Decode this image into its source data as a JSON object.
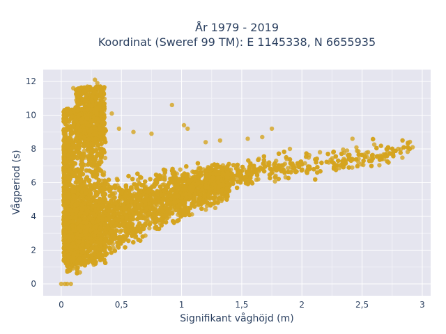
{
  "chart_data": {
    "type": "scatter",
    "title_lines": [
      "År 1979 - 2019",
      "Koordinat (Sweref 99 TM): E 1145338, N 6655935"
    ],
    "xlabel": "Signifikant våghöjd (m)",
    "ylabel": "Vågperiod (s)",
    "xlim": [
      -0.15,
      3.07
    ],
    "ylim": [
      -0.7,
      12.7
    ],
    "x_ticks": [
      0,
      0.5,
      1,
      1.5,
      2,
      2.5,
      3
    ],
    "x_tick_labels": [
      "0",
      "0,5",
      "1",
      "1,5",
      "2",
      "2,5",
      "3"
    ],
    "y_ticks": [
      0,
      2,
      4,
      6,
      8,
      10,
      12
    ],
    "y_tick_labels": [
      "0",
      "2",
      "4",
      "6",
      "8",
      "10",
      "12"
    ],
    "grid": true,
    "marker_color": "#D4A41F",
    "plot_background": "#E5E5EF",
    "point_count": 9000,
    "points": [
      [
        0.0,
        0.0
      ],
      [
        0.03,
        0.0
      ],
      [
        0.05,
        0.0
      ],
      [
        0.08,
        0.0
      ],
      [
        0.1,
        11.6
      ],
      [
        0.15,
        11.3
      ],
      [
        0.22,
        11.5
      ],
      [
        0.28,
        12.1
      ],
      [
        0.3,
        11.9
      ],
      [
        0.3,
        11.0
      ],
      [
        0.42,
        10.1
      ],
      [
        0.35,
        9.4
      ],
      [
        0.48,
        9.2
      ],
      [
        0.6,
        9.0
      ],
      [
        0.75,
        8.9
      ],
      [
        0.92,
        10.6
      ],
      [
        1.02,
        9.4
      ],
      [
        1.05,
        9.2
      ],
      [
        1.2,
        8.4
      ],
      [
        1.32,
        8.5
      ],
      [
        1.55,
        8.6
      ],
      [
        1.67,
        8.7
      ],
      [
        1.75,
        9.2
      ],
      [
        1.9,
        8.0
      ],
      [
        2.15,
        7.8
      ],
      [
        2.42,
        8.6
      ],
      [
        2.55,
        7.8
      ],
      [
        2.65,
        7.6
      ],
      [
        2.8,
        8.0
      ],
      [
        2.88,
        8.3
      ],
      [
        2.92,
        8.1
      ],
      [
        1.28,
        4.5
      ],
      [
        0.03,
        4.6
      ],
      [
        1.02,
        4.8
      ],
      [
        0.6,
        4.2
      ],
      [
        0.25,
        2.5
      ],
      [
        0.05,
        1.2
      ]
    ]
  }
}
